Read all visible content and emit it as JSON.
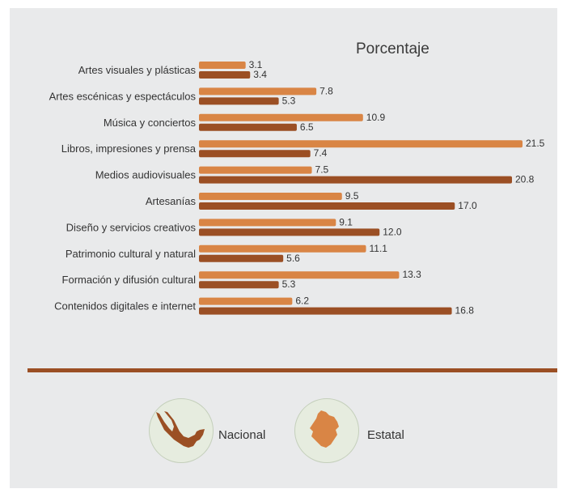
{
  "chart_data": {
    "type": "bar",
    "title": "Porcentaje",
    "orientation": "horizontal",
    "categories": [
      "Artes visuales y plásticas",
      "Artes escénicas y espectáculos",
      "Música y conciertos",
      "Libros, impresiones y prensa",
      "Medios audiovisuales",
      "Artesanías",
      "Diseño y servicios creativos",
      "Patrimonio cultural y natural",
      "Formación y difusión cultural",
      "Contenidos digitales e internet"
    ],
    "series": [
      {
        "name": "Estatal",
        "color": "#d98545",
        "values": [
          3.1,
          7.8,
          10.9,
          21.5,
          7.5,
          9.5,
          9.1,
          11.1,
          13.3,
          6.2
        ],
        "labels": [
          "3.1",
          "7.8",
          "10.9",
          "21.5",
          "7.5",
          "9.5",
          "9.1",
          "11.1",
          "13.3",
          "6.2"
        ]
      },
      {
        "name": "Nacional",
        "color": "#9b4f24",
        "values": [
          3.4,
          5.3,
          6.5,
          7.4,
          20.8,
          17.0,
          12.0,
          5.6,
          5.3,
          16.8
        ],
        "labels": [
          "3.4",
          "5.3",
          "6.5",
          "7.4",
          "20.8",
          "17.0",
          "12.0",
          "5.6",
          "5.3",
          "16.8"
        ]
      }
    ],
    "xlim": [
      0,
      21.5
    ],
    "grid": false,
    "legend_placement": "bottom"
  },
  "legend": {
    "nacional_label": "Nacional",
    "estatal_label": "Estatal",
    "nacional_icon": "mexico-map-icon",
    "estatal_icon": "state-map-icon"
  },
  "colors": {
    "background": "#e9eaeb",
    "divider": "#9b4f24"
  }
}
